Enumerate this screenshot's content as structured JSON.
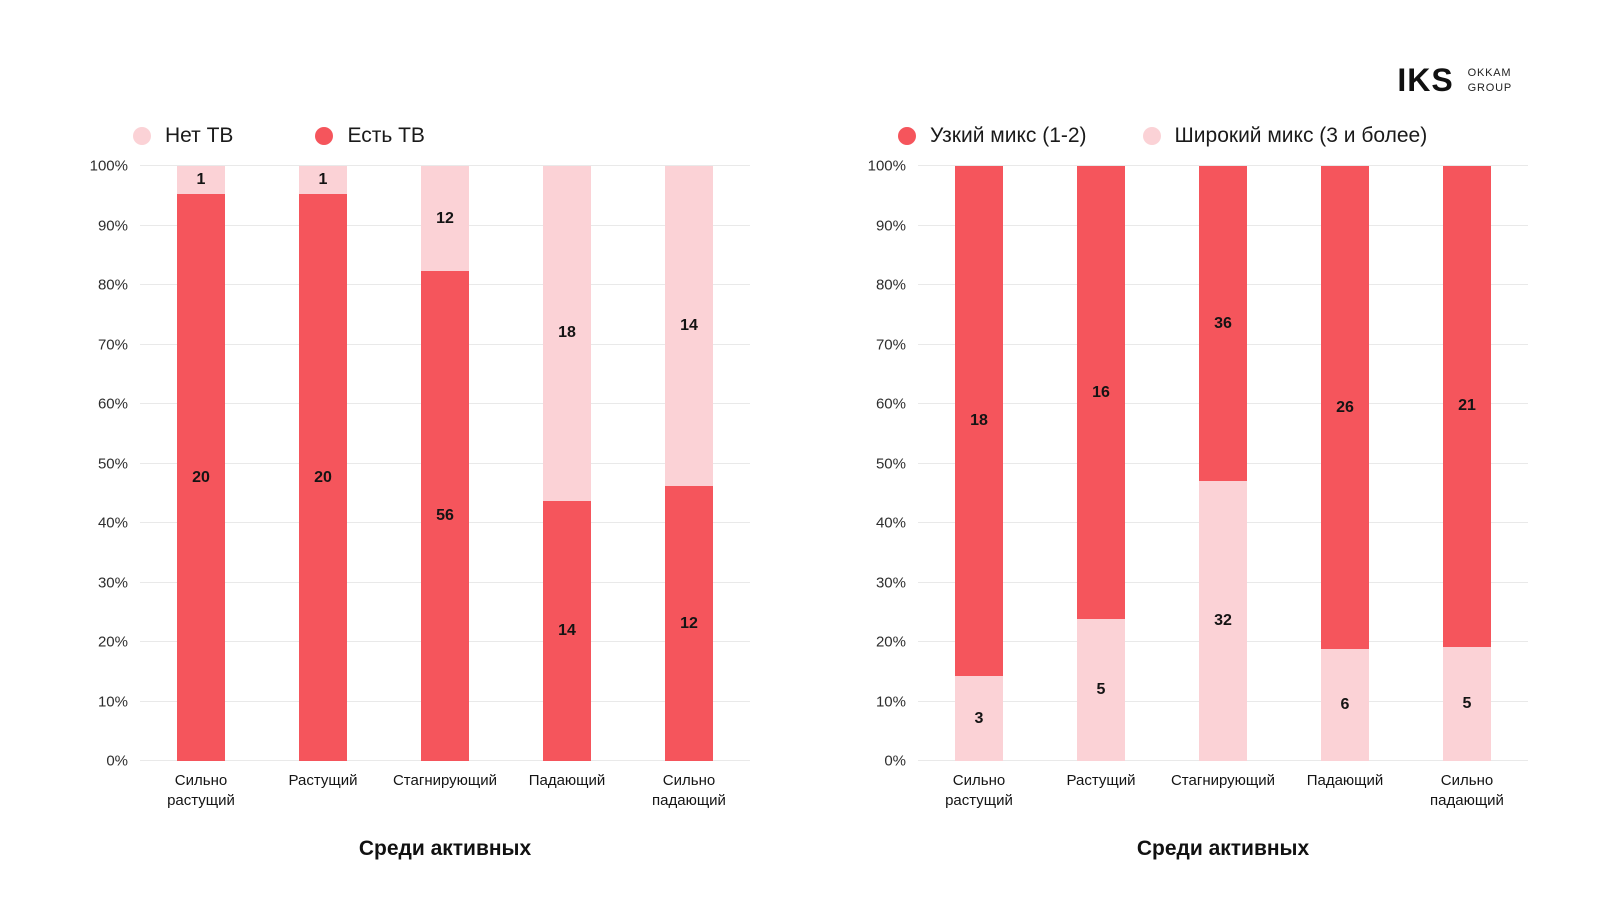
{
  "logo": {
    "iks": "IKS",
    "okkam_line1": "OKKAM",
    "okkam_line2": "GROUP"
  },
  "colors": {
    "red": "#f5555c",
    "pink": "#fbd2d6",
    "grid": "#e9e9e9"
  },
  "chart_data": [
    {
      "type": "bar",
      "stacked": true,
      "title": "",
      "xlabel": "Среди активных",
      "ylabel": "",
      "ylim": [
        0,
        100
      ],
      "grid": true,
      "legend_position": "top",
      "yticks": [
        "0%",
        "10%",
        "20%",
        "30%",
        "40%",
        "50%",
        "60%",
        "70%",
        "80%",
        "90%",
        "100%"
      ],
      "categories": [
        "Сильно\nрастущий",
        "Растущий",
        "Стагнирующий",
        "Падающий",
        "Сильно\nпадающий"
      ],
      "legend": [
        {
          "label": "Нет ТВ",
          "color": "pink"
        },
        {
          "label": "Есть ТВ",
          "color": "red"
        }
      ],
      "series": [
        {
          "name": "Есть ТВ",
          "color": "red",
          "values": [
            20,
            20,
            56,
            14,
            12
          ]
        },
        {
          "name": "Нет ТВ",
          "color": "pink",
          "values": [
            1,
            1,
            12,
            18,
            14
          ]
        }
      ]
    },
    {
      "type": "bar",
      "stacked": true,
      "title": "",
      "xlabel": "Среди активных",
      "ylabel": "",
      "ylim": [
        0,
        100
      ],
      "grid": true,
      "legend_position": "top",
      "yticks": [
        "0%",
        "10%",
        "20%",
        "30%",
        "40%",
        "50%",
        "60%",
        "70%",
        "80%",
        "90%",
        "100%"
      ],
      "categories": [
        "Сильно\nрастущий",
        "Растущий",
        "Стагнирующий",
        "Падающий",
        "Сильно\nпадающий"
      ],
      "legend": [
        {
          "label": "Узкий микс (1-2)",
          "color": "red"
        },
        {
          "label": "Широкий микс (3 и более)",
          "color": "pink"
        }
      ],
      "series": [
        {
          "name": "Широкий микс (3 и более)",
          "color": "pink",
          "values": [
            3,
            5,
            32,
            6,
            5
          ]
        },
        {
          "name": "Узкий микс (1-2)",
          "color": "red",
          "values": [
            18,
            16,
            36,
            26,
            21
          ]
        }
      ]
    }
  ]
}
